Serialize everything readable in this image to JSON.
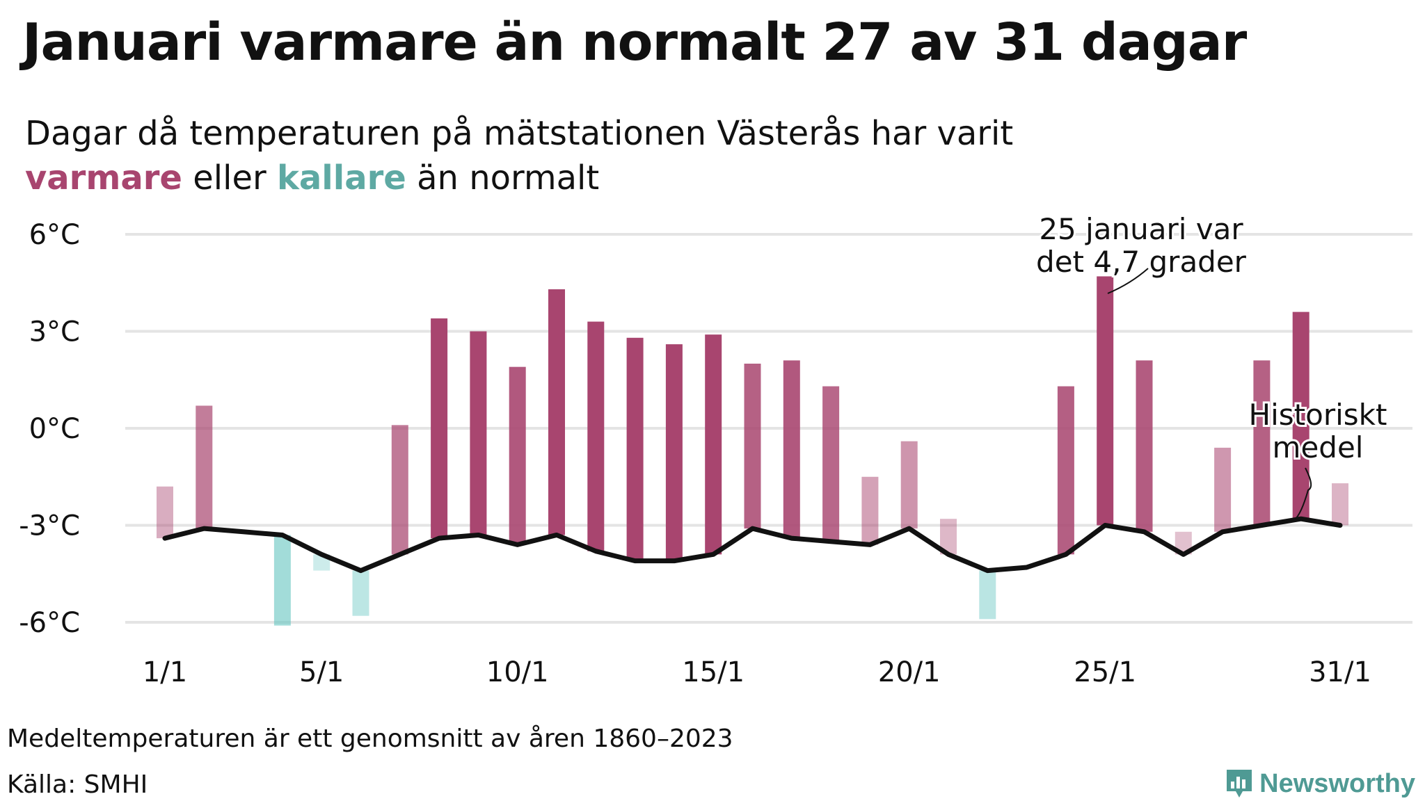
{
  "title": "Januari varmare än normalt 27 av 31 dagar",
  "subtitle": {
    "line1": "Dagar då temperaturen på mätstationen Västerås har varit",
    "warm_word": "varmare",
    "mid_word": "eller",
    "cold_word": "kallare",
    "end_words": "än normalt"
  },
  "colors": {
    "warm": "#a8456f",
    "cold": "#5ec3be",
    "line": "#111111",
    "grid": "#e4e4e4"
  },
  "chart_data": {
    "type": "bar",
    "unit": "°C",
    "ylim": [
      -6.5,
      6.5
    ],
    "y_ticks": [
      6,
      3,
      0,
      -3,
      -6
    ],
    "y_tick_labels": [
      "6°C",
      "3°C",
      "0°C",
      "-3°C",
      "-6°C"
    ],
    "x_tick_days": [
      1,
      5,
      10,
      15,
      20,
      25,
      31
    ],
    "x_tick_labels": [
      "1/1",
      "5/1",
      "10/1",
      "15/1",
      "20/1",
      "25/1",
      "31/1"
    ],
    "days": [
      1,
      2,
      3,
      4,
      5,
      6,
      7,
      8,
      9,
      10,
      11,
      12,
      13,
      14,
      15,
      16,
      17,
      18,
      19,
      20,
      21,
      22,
      23,
      24,
      25,
      26,
      27,
      28,
      29,
      30,
      31
    ],
    "temperature": [
      -1.8,
      0.7,
      null,
      -6.1,
      -4.4,
      -5.8,
      0.1,
      3.4,
      3.0,
      1.9,
      4.3,
      3.3,
      2.8,
      2.6,
      2.9,
      2.0,
      2.1,
      1.3,
      -1.5,
      -0.4,
      -2.8,
      -5.9,
      null,
      1.3,
      4.7,
      2.1,
      -3.2,
      -0.6,
      2.1,
      3.6,
      -1.7
    ],
    "historical_mean": [
      -3.4,
      -3.1,
      -3.2,
      -3.3,
      -3.9,
      -4.4,
      -3.9,
      -3.4,
      -3.3,
      -3.6,
      -3.3,
      -3.8,
      -4.1,
      -4.1,
      -3.9,
      -3.1,
      -3.4,
      -3.5,
      -3.6,
      -3.1,
      -3.9,
      -4.4,
      -4.3,
      -3.9,
      -3.0,
      -3.2,
      -3.9,
      -3.2,
      -3.0,
      -2.8,
      -3.0
    ],
    "annotations": {
      "max_day_line1": "25 januari var",
      "max_day_line2": "det 4,7 grader",
      "mean_line1": "Historiskt",
      "mean_line2": "medel"
    }
  },
  "footnote": "Medeltemperaturen är ett genomsnitt av åren 1860–2023",
  "source": "Källa: SMHI",
  "brand": "Newsworthy"
}
